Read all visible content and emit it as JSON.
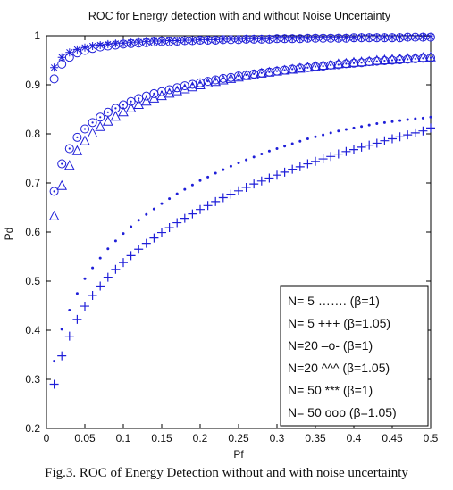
{
  "chart_data": {
    "type": "scatter",
    "title": "ROC for Energy detection with and without Noise Uncertainty",
    "xlabel": "Pf",
    "ylabel": "Pd",
    "xlim": [
      0,
      0.5
    ],
    "ylim": [
      0.2,
      1
    ],
    "grid": false,
    "x_ticks": [
      "0",
      "0.05",
      "0.1",
      "0.15",
      "0.2",
      "0.25",
      "0.3",
      "0.35",
      "0.4",
      "0.45",
      "0.5"
    ],
    "y_ticks": [
      "0.2",
      "0.3",
      "0.4",
      "0.5",
      "0.6",
      "0.7",
      "0.8",
      "0.9",
      "1"
    ],
    "legend_position": "bottom-right",
    "legend": [
      "N=  5 ……. (β=1)",
      "N=  5 +++ (β=1.05)",
      "N=20 –o- (β=1)",
      "N=20 ^^^ (β=1.05)",
      "N= 50 *** (β=1)",
      "N= 50 ooo (β=1.05)"
    ],
    "color": "#1f1fd8",
    "x": [
      0.01,
      0.02,
      0.03,
      0.04,
      0.05,
      0.06,
      0.07,
      0.08,
      0.09,
      0.1,
      0.11,
      0.12,
      0.13,
      0.14,
      0.15,
      0.16,
      0.17,
      0.18,
      0.19,
      0.2,
      0.21,
      0.22,
      0.23,
      0.24,
      0.25,
      0.26,
      0.27,
      0.28,
      0.29,
      0.3,
      0.31,
      0.32,
      0.33,
      0.34,
      0.35,
      0.36,
      0.37,
      0.38,
      0.39,
      0.4,
      0.41,
      0.42,
      0.43,
      0.44,
      0.45,
      0.46,
      0.47,
      0.48,
      0.49,
      0.5
    ],
    "series": [
      {
        "marker": "dot",
        "values": [
          0.337,
          0.402,
          0.441,
          0.475,
          0.505,
          0.527,
          0.547,
          0.566,
          0.582,
          0.597,
          0.611,
          0.624,
          0.636,
          0.647,
          0.658,
          0.668,
          0.678,
          0.687,
          0.696,
          0.705,
          0.712,
          0.72,
          0.727,
          0.734,
          0.741,
          0.747,
          0.753,
          0.759,
          0.765,
          0.77,
          0.775,
          0.78,
          0.785,
          0.79,
          0.794,
          0.798,
          0.802,
          0.806,
          0.809,
          0.812,
          0.815,
          0.818,
          0.821,
          0.823,
          0.825,
          0.827,
          0.829,
          0.831,
          0.832,
          0.834
        ]
      },
      {
        "marker": "plus",
        "values": [
          0.29,
          0.348,
          0.388,
          0.422,
          0.449,
          0.471,
          0.49,
          0.508,
          0.524,
          0.538,
          0.552,
          0.565,
          0.577,
          0.588,
          0.599,
          0.609,
          0.619,
          0.628,
          0.637,
          0.646,
          0.654,
          0.662,
          0.67,
          0.677,
          0.684,
          0.691,
          0.698,
          0.704,
          0.71,
          0.716,
          0.722,
          0.728,
          0.733,
          0.739,
          0.744,
          0.749,
          0.754,
          0.759,
          0.764,
          0.768,
          0.773,
          0.777,
          0.781,
          0.786,
          0.79,
          0.794,
          0.798,
          0.802,
          0.806,
          0.812
        ]
      },
      {
        "marker": "circle-dot",
        "values": [
          0.683,
          0.739,
          0.77,
          0.793,
          0.81,
          0.823,
          0.834,
          0.844,
          0.852,
          0.859,
          0.866,
          0.872,
          0.877,
          0.882,
          0.886,
          0.89,
          0.894,
          0.898,
          0.901,
          0.904,
          0.907,
          0.91,
          0.913,
          0.915,
          0.918,
          0.92,
          0.922,
          0.924,
          0.926,
          0.928,
          0.93,
          0.932,
          0.934,
          0.935,
          0.937,
          0.938,
          0.94,
          0.941,
          0.943,
          0.944,
          0.945,
          0.947,
          0.948,
          0.949,
          0.95,
          0.951,
          0.952,
          0.953,
          0.954,
          0.955
        ]
      },
      {
        "marker": "triangle",
        "values": [
          0.632,
          0.694,
          0.735,
          0.765,
          0.785,
          0.801,
          0.814,
          0.825,
          0.835,
          0.844,
          0.852,
          0.859,
          0.866,
          0.872,
          0.877,
          0.882,
          0.887,
          0.891,
          0.895,
          0.899,
          0.903,
          0.906,
          0.909,
          0.912,
          0.915,
          0.918,
          0.92,
          0.923,
          0.925,
          0.927,
          0.929,
          0.931,
          0.933,
          0.935,
          0.937,
          0.939,
          0.94,
          0.942,
          0.943,
          0.945,
          0.946,
          0.947,
          0.949,
          0.95,
          0.951,
          0.952,
          0.953,
          0.954,
          0.955,
          0.956
        ]
      },
      {
        "marker": "star",
        "values": [
          0.935,
          0.956,
          0.966,
          0.972,
          0.976,
          0.979,
          0.981,
          0.983,
          0.984,
          0.985,
          0.986,
          0.987,
          0.988,
          0.989,
          0.989,
          0.99,
          0.99,
          0.991,
          0.991,
          0.992,
          0.992,
          0.992,
          0.993,
          0.993,
          0.993,
          0.994,
          0.994,
          0.994,
          0.994,
          0.995,
          0.995,
          0.995,
          0.995,
          0.995,
          0.996,
          0.996,
          0.996,
          0.996,
          0.996,
          0.996,
          0.997,
          0.997,
          0.997,
          0.997,
          0.997,
          0.997,
          0.997,
          0.997,
          0.998,
          0.998
        ]
      },
      {
        "marker": "circle",
        "values": [
          0.912,
          0.942,
          0.956,
          0.965,
          0.97,
          0.974,
          0.977,
          0.979,
          0.981,
          0.983,
          0.984,
          0.985,
          0.986,
          0.987,
          0.988,
          0.988,
          0.989,
          0.99,
          0.99,
          0.991,
          0.991,
          0.991,
          0.992,
          0.992,
          0.992,
          0.993,
          0.993,
          0.993,
          0.993,
          0.994,
          0.994,
          0.994,
          0.994,
          0.995,
          0.995,
          0.995,
          0.995,
          0.995,
          0.995,
          0.996,
          0.996,
          0.996,
          0.996,
          0.996,
          0.996,
          0.996,
          0.997,
          0.997,
          0.997,
          0.997
        ]
      }
    ]
  },
  "caption": "Fig.3. ROC of Energy Detection without and with noise uncertainty"
}
